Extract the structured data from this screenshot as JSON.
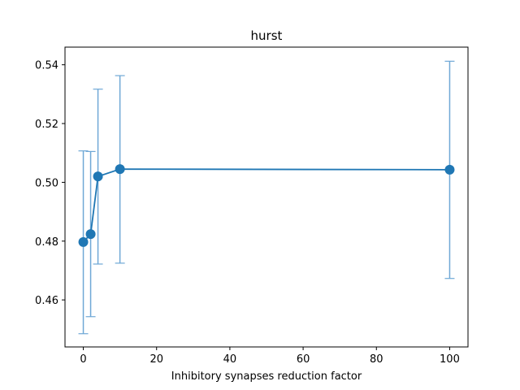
{
  "chart_data": {
    "type": "line",
    "title": "hurst",
    "xlabel": "Inhibitory synapses reduction factor",
    "ylabel": "",
    "xlim": [
      -5,
      105
    ],
    "ylim": [
      0.444,
      0.546
    ],
    "xticks": [
      0,
      20,
      40,
      60,
      80,
      100
    ],
    "xtick_labels": [
      "0",
      "20",
      "40",
      "60",
      "80",
      "100"
    ],
    "yticks": [
      0.46,
      0.48,
      0.5,
      0.52,
      0.54
    ],
    "ytick_labels": [
      "0.46",
      "0.48",
      "0.50",
      "0.52",
      "0.54"
    ],
    "grid": false,
    "series": [
      {
        "x": [
          0,
          2,
          4,
          10,
          100
        ],
        "y": [
          0.4797,
          0.4824,
          0.502,
          0.5045,
          0.5043
        ],
        "yerr_low": [
          0.4485,
          0.4543,
          0.4722,
          0.4725,
          0.4673
        ],
        "yerr_high": [
          0.5107,
          0.5105,
          0.5317,
          0.5363,
          0.5412
        ],
        "color": "#1f77b4",
        "errorbar_color": "#6fa8d6"
      }
    ]
  }
}
